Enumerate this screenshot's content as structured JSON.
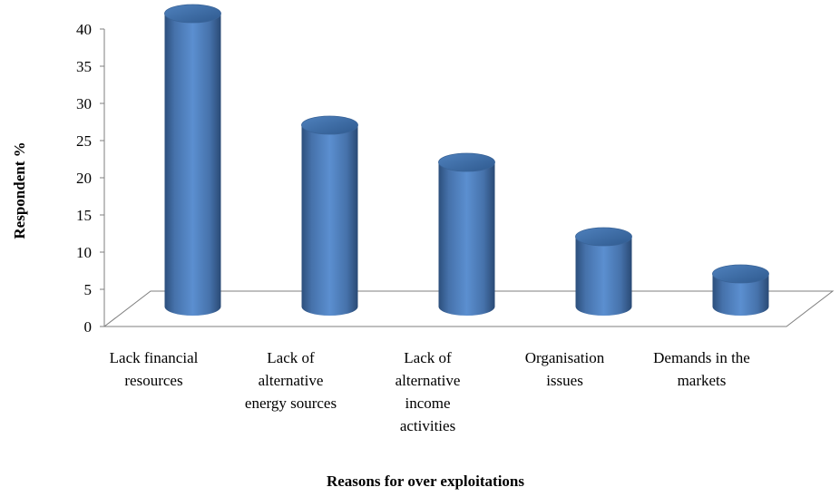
{
  "chart_data": {
    "type": "bar",
    "style": "3d-cylinder",
    "title": "",
    "xlabel": "Reasons for over exploitations",
    "ylabel": "Respondent %",
    "categories": [
      [
        "Lack financial",
        "resources"
      ],
      [
        "Lack of",
        "alternative",
        "energy sources"
      ],
      [
        "Lack of",
        "alternative",
        "income",
        "activities"
      ],
      [
        "Organisation",
        "issues"
      ],
      [
        "Demands in the",
        "markets"
      ]
    ],
    "values": [
      40,
      25,
      20,
      10,
      5
    ],
    "ylim": [
      0,
      40
    ],
    "yticks": [
      0,
      5,
      10,
      15,
      20,
      25,
      30,
      35,
      40
    ],
    "grid": false,
    "legend": "none",
    "colors": {
      "bar": "#4f81bd",
      "bar_dark": "#2c4f7c",
      "bar_light": "#8db3e2",
      "axis": "#7f7f7f"
    }
  }
}
